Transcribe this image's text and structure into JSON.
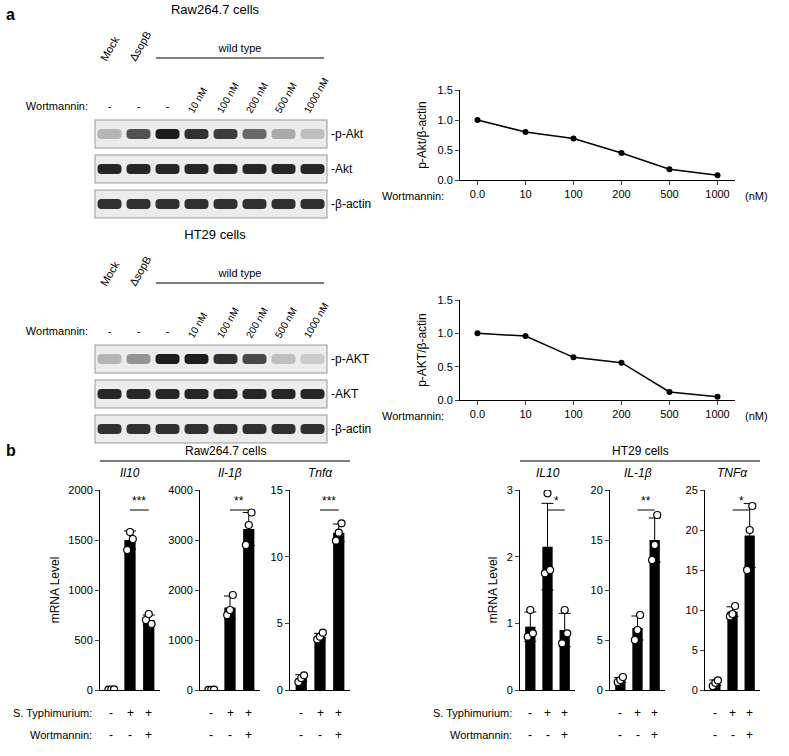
{
  "panels": [
    "a",
    "b"
  ],
  "blots": [
    {
      "title": "Raw264.7 cells",
      "lane_labels": [
        "Mock",
        "ΔsopB"
      ],
      "group_label": "wild type",
      "treatment_label": "Wortmannin:",
      "treatment": [
        "-",
        "-",
        "-",
        "10 nM",
        "100 nM",
        "200 nM",
        "500 nM",
        "1000 nM"
      ],
      "rows": [
        {
          "label": "-p-Akt",
          "intensity": [
            0.25,
            0.7,
            0.95,
            0.85,
            0.8,
            0.6,
            0.3,
            0.2
          ]
        },
        {
          "label": "-Akt",
          "intensity": [
            0.9,
            0.9,
            0.9,
            0.9,
            0.9,
            0.9,
            0.9,
            0.9
          ]
        },
        {
          "label": "-β-actin",
          "intensity": [
            0.85,
            0.85,
            0.85,
            0.85,
            0.85,
            0.85,
            0.85,
            0.85
          ]
        }
      ]
    },
    {
      "title": "HT29 cells",
      "lane_labels": [
        "Mock",
        "ΔsopB"
      ],
      "group_label": "wild type",
      "treatment_label": "Wortmannin:",
      "treatment": [
        "-",
        "-",
        "-",
        "10 nM",
        "100 nM",
        "200 nM",
        "500 nM",
        "1000 nM"
      ],
      "rows": [
        {
          "label": "-p-AKT",
          "intensity": [
            0.25,
            0.4,
            0.95,
            0.95,
            0.85,
            0.75,
            0.2,
            0.15
          ]
        },
        {
          "label": "-AKT",
          "intensity": [
            0.9,
            0.9,
            0.9,
            0.9,
            0.9,
            0.9,
            0.9,
            0.9
          ]
        },
        {
          "label": "-β-actin",
          "intensity": [
            0.85,
            0.85,
            0.85,
            0.85,
            0.85,
            0.85,
            0.85,
            0.85
          ]
        }
      ]
    }
  ],
  "conditions": [
    {
      "label": "S. Typhimurium:",
      "signs": [
        "-",
        "+",
        "+"
      ]
    },
    {
      "label": "Wortmannin:",
      "signs": [
        "-",
        "-",
        "+"
      ]
    }
  ],
  "chart_data": [
    {
      "type": "line",
      "categories": [
        "0.0",
        "10",
        "100",
        "200",
        "500",
        "1000"
      ],
      "values": [
        1.0,
        0.8,
        0.69,
        0.45,
        0.18,
        0.08
      ],
      "color": "#000000",
      "marker": "circle",
      "ylabel": "p-Akt/β-actin",
      "xlabel": "Wortmannin:",
      "annotations": [
        "(nM)"
      ],
      "ylim": [
        0,
        1.5
      ],
      "yticks": [
        {
          "value": 0,
          "label": "0.0"
        },
        0.5,
        {
          "value": 1,
          "label": "1.0"
        },
        1.5
      ]
    },
    {
      "type": "line",
      "categories": [
        "0.0",
        "10",
        "100",
        "200",
        "500",
        "1000"
      ],
      "values": [
        1.0,
        0.96,
        0.64,
        0.56,
        0.12,
        0.05
      ],
      "color": "#000000",
      "marker": "circle",
      "ylabel": "p-AKT/β-actin",
      "xlabel": "Wortmannin:",
      "annotations": [
        "(nM)"
      ],
      "ylim": [
        0,
        1.5
      ],
      "yticks": [
        {
          "value": 0,
          "label": "0.0"
        },
        0.5,
        {
          "value": 1,
          "label": "1.0"
        },
        1.5
      ]
    },
    {
      "type": "bar",
      "group": "Raw264.7 cells",
      "title": "Il10",
      "ylabel": "mRNA Level",
      "categories": [
        null,
        null,
        null
      ],
      "values": [
        5,
        1500,
        700
      ],
      "errors": [
        4,
        90,
        50
      ],
      "points": [
        [
          3,
          5,
          7
        ],
        [
          1400,
          1580,
          1510
        ],
        [
          700,
          760,
          660
        ]
      ],
      "color": "#000000",
      "significance": "***",
      "ylim": [
        0,
        2000
      ],
      "yticks": [
        0,
        500,
        1000,
        1500,
        2000
      ]
    },
    {
      "type": "bar",
      "group": "Raw264.7 cells",
      "title": "Il-1β",
      "categories": [
        null,
        null,
        null
      ],
      "values": [
        5,
        1650,
        3220
      ],
      "errors": [
        4,
        230,
        330
      ],
      "points": [
        [
          3,
          5,
          7
        ],
        [
          1500,
          1600,
          1900
        ],
        [
          2900,
          3300,
          3550
        ]
      ],
      "color": "#000000",
      "significance": "**",
      "ylim": [
        0,
        4000
      ],
      "yticks": [
        0,
        1000,
        2000,
        3000,
        4000
      ]
    },
    {
      "type": "bar",
      "group": "Raw264.7 cells",
      "title": "Tnfα",
      "categories": [
        null,
        null,
        null
      ],
      "values": [
        0.9,
        4.0,
        11.8
      ],
      "errors": [
        0.25,
        0.25,
        0.65
      ],
      "points": [
        [
          0.6,
          0.9,
          1.1
        ],
        [
          3.8,
          4.0,
          4.3
        ],
        [
          11.2,
          11.8,
          12.5
        ]
      ],
      "color": "#000000",
      "significance": "***",
      "ylim": [
        0,
        15
      ],
      "yticks": [
        0,
        5,
        10,
        15
      ]
    },
    {
      "type": "bar",
      "group": "HT29 cells",
      "title": "IL10",
      "ylabel": "mRNA Level",
      "categories": [
        null,
        null,
        null
      ],
      "values": [
        0.95,
        2.15,
        0.9
      ],
      "errors": [
        0.22,
        0.65,
        0.25
      ],
      "points": [
        [
          0.8,
          1.2,
          0.85
        ],
        [
          1.75,
          2.95,
          1.8
        ],
        [
          0.7,
          1.2,
          0.85
        ]
      ],
      "color": "#000000",
      "significance": "*",
      "ylim": [
        0,
        3
      ],
      "yticks": [
        0,
        1,
        2,
        3
      ]
    },
    {
      "type": "bar",
      "group": "HT29 cells",
      "title": "IL-1β",
      "categories": [
        null,
        null,
        null
      ],
      "values": [
        1.0,
        6.2,
        15.0
      ],
      "errors": [
        0.25,
        1.2,
        2.2
      ],
      "points": [
        [
          0.8,
          1.0,
          1.3
        ],
        [
          5.0,
          6.0,
          7.5
        ],
        [
          13,
          14.5,
          17.5
        ]
      ],
      "color": "#000000",
      "significance": "**",
      "ylim": [
        0,
        20
      ],
      "yticks": [
        0,
        5,
        10,
        15,
        20
      ]
    },
    {
      "type": "bar",
      "group": "HT29 cells",
      "title": "TNFα",
      "categories": [
        null,
        null,
        null
      ],
      "values": [
        0.9,
        9.8,
        19.3
      ],
      "errors": [
        0.35,
        0.6,
        4.0
      ],
      "points": [
        [
          0.5,
          0.9,
          1.2
        ],
        [
          9.2,
          9.5,
          10.5
        ],
        [
          15,
          20,
          23
        ]
      ],
      "color": "#000000",
      "significance": "*",
      "ylim": [
        0,
        25
      ],
      "yticks": [
        0,
        5,
        10,
        15,
        20,
        25
      ]
    }
  ]
}
